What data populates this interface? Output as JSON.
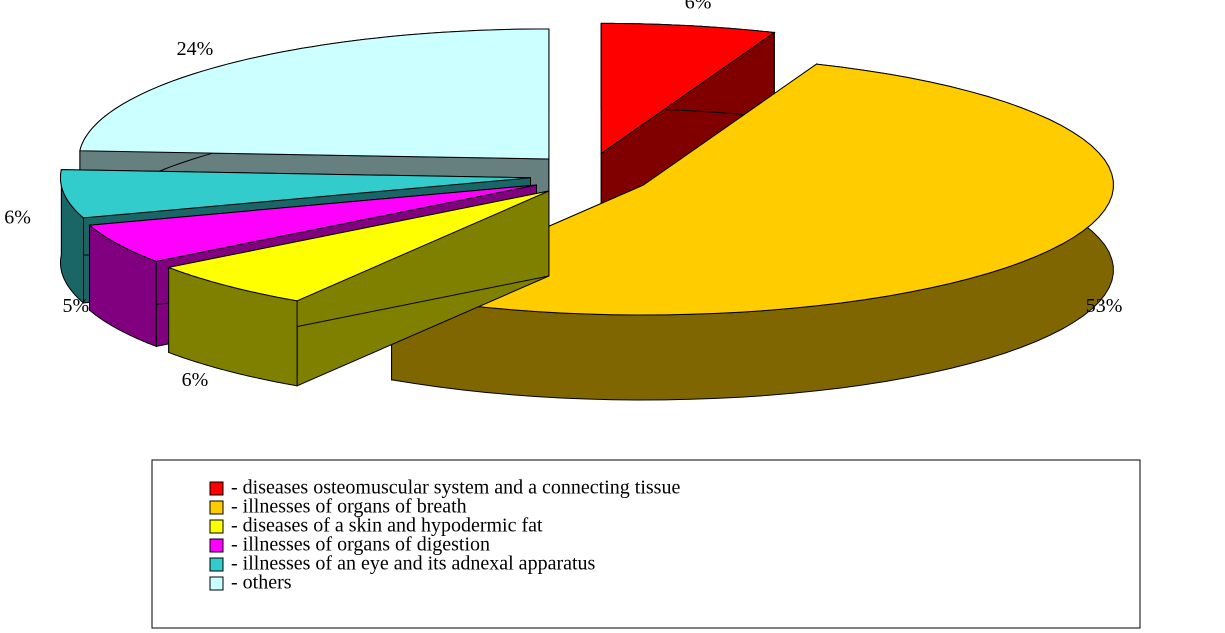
{
  "chart_data": {
    "type": "pie3d",
    "categories": [
      "- diseases osteomuscular system and a connecting tissue",
      "- illnesses of organs of breath",
      "- diseases of a skin and hypodermic fat",
      "- illnesses of organs of digestion",
      "- illnesses of an eye and its adnexal apparatus",
      "- others"
    ],
    "values": [
      6,
      53,
      6,
      5,
      6,
      24
    ],
    "value_labels": [
      "6%",
      "53%",
      "6%",
      "5%",
      "6%",
      "24%"
    ],
    "colors": [
      "#ff0000",
      "#ffcc00",
      "#ffff00",
      "#ff00ff",
      "#33cccc",
      "#ccffff"
    ],
    "legend": "bottom"
  }
}
